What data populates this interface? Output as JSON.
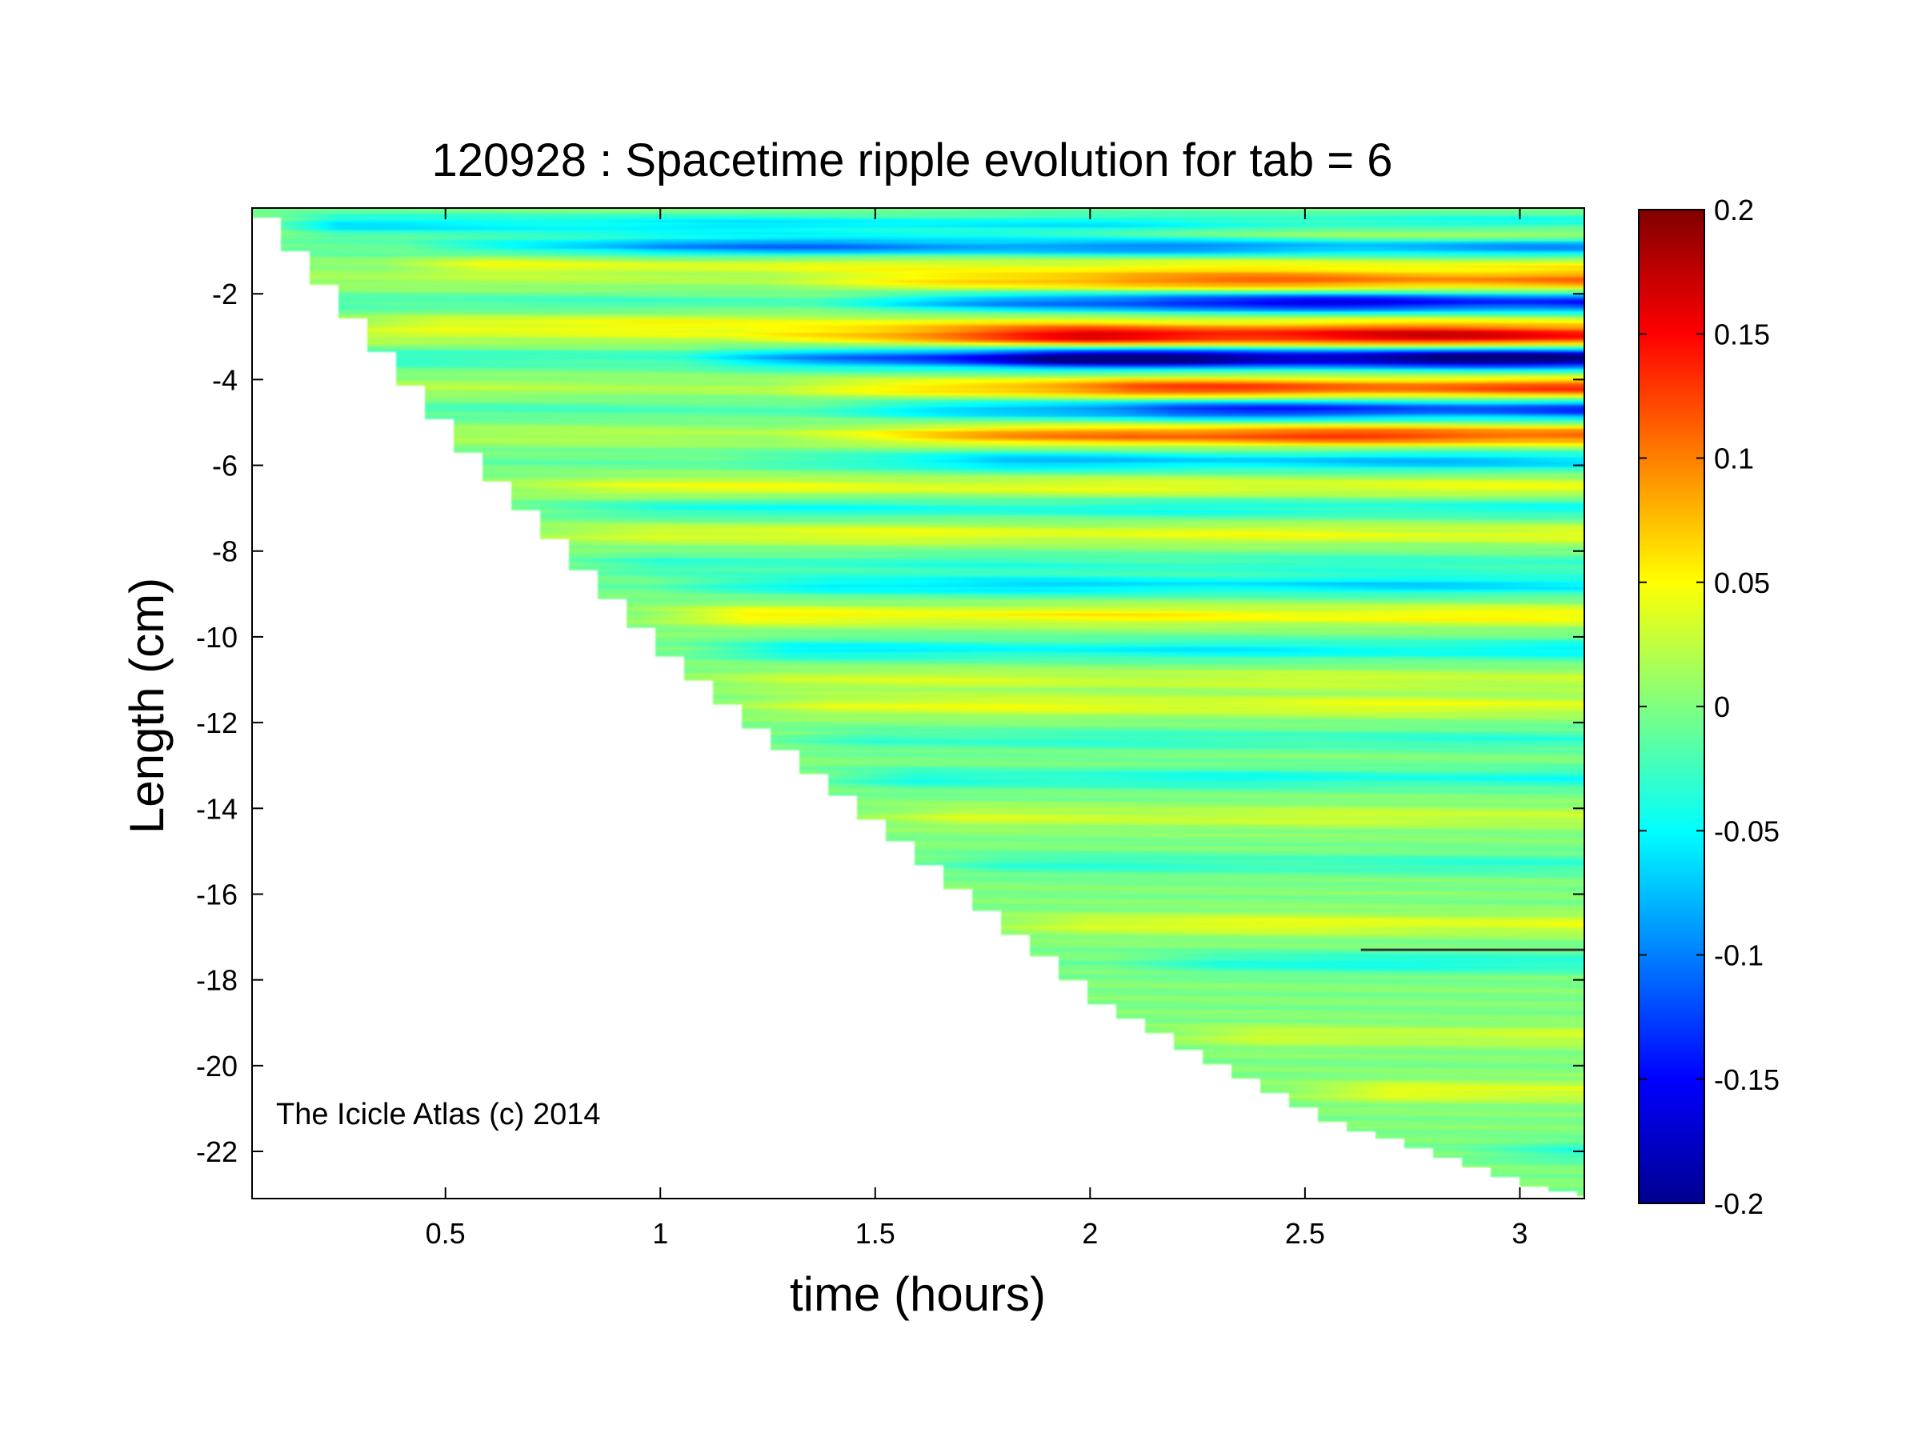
{
  "chart_data": {
    "type": "heatmap",
    "title": "120928 : Spacetime ripple evolution for tab = 6",
    "xlabel": "time (hours)",
    "ylabel": "Length (cm)",
    "xlim": [
      0.05,
      3.15
    ],
    "ylim": [
      -23.1,
      0.0
    ],
    "xticks": [
      0.5,
      1,
      1.5,
      2,
      2.5,
      3
    ],
    "xtick_labels": [
      "0.5",
      "1",
      "1.5",
      "2",
      "2.5",
      "3"
    ],
    "yticks": [
      -2,
      -4,
      -6,
      -8,
      -10,
      -12,
      -14,
      -16,
      -18,
      -20,
      -22
    ],
    "ytick_labels": [
      "-2",
      "-4",
      "-6",
      "-8",
      "-10",
      "-12",
      "-14",
      "-16",
      "-18",
      "-20",
      "-22"
    ],
    "colormap": "jet",
    "clim": [
      -0.2,
      0.2
    ],
    "colorbar_ticks": [
      0.2,
      0.15,
      0.1,
      0.05,
      0,
      -0.05,
      -0.1,
      -0.15,
      -0.2
    ],
    "colorbar_tick_labels": [
      "0.2",
      "0.15",
      "0.1",
      "0.05",
      "0",
      "-0.05",
      "-0.1",
      "-0.15",
      "-0.2"
    ],
    "grid": false,
    "annotation": "The Icicle Atlas (c) 2014",
    "data_extent_description": "icicle tip advances from about -0.2 cm at t=0.05 h to about -23 cm at t=3.15 h; region below the tip is empty",
    "tip_front": [
      {
        "t": 0.05,
        "len": -0.2
      },
      {
        "t": 0.5,
        "len": -5.5
      },
      {
        "t": 1.0,
        "len": -10.6
      },
      {
        "t": 1.5,
        "len": -14.6
      },
      {
        "t": 2.0,
        "len": -18.6
      },
      {
        "t": 2.5,
        "len": -21.2
      },
      {
        "t": 3.0,
        "len": -22.8
      },
      {
        "t": 3.15,
        "len": -23.1
      }
    ],
    "ripple_bands": [
      {
        "len": -0.4,
        "amp": -0.06,
        "t_on": 0.05,
        "grow": 0.2
      },
      {
        "len": -0.6,
        "amp": 0.06,
        "t_on": 1.6,
        "grow": 1.0
      },
      {
        "len": -0.9,
        "amp": -0.1,
        "t_on": 0.3,
        "grow": 0.7
      },
      {
        "len": -1.3,
        "amp": 0.04,
        "t_on": 0.3,
        "grow": 0.3
      },
      {
        "len": -1.7,
        "amp": 0.1,
        "t_on": 1.1,
        "grow": 1.0
      },
      {
        "len": -2.2,
        "amp": -0.15,
        "t_on": 1.2,
        "grow": 1.0
      },
      {
        "len": -2.7,
        "amp": 0.04,
        "t_on": 0.2,
        "grow": 0.3
      },
      {
        "len": -3.0,
        "amp": 0.15,
        "t_on": 1.0,
        "grow": 1.0
      },
      {
        "len": -3.5,
        "amp": -0.2,
        "t_on": 0.9,
        "grow": 1.0
      },
      {
        "len": -4.2,
        "amp": 0.12,
        "t_on": 1.1,
        "grow": 1.0
      },
      {
        "len": -4.7,
        "amp": -0.13,
        "t_on": 1.2,
        "grow": 1.0
      },
      {
        "len": -5.3,
        "amp": 0.12,
        "t_on": 1.1,
        "grow": 1.0
      },
      {
        "len": -5.9,
        "amp": -0.07,
        "t_on": 1.0,
        "grow": 0.8
      },
      {
        "len": -6.5,
        "amp": 0.04,
        "t_on": 0.5,
        "grow": 0.4
      },
      {
        "len": -7.0,
        "amp": -0.04,
        "t_on": 0.6,
        "grow": 0.4
      },
      {
        "len": -7.6,
        "amp": 0.04,
        "t_on": 0.6,
        "grow": 0.4
      },
      {
        "len": -8.3,
        "amp": -0.03,
        "t_on": 0.7,
        "grow": 0.3
      },
      {
        "len": -8.8,
        "amp": -0.06,
        "t_on": 0.9,
        "grow": 0.5
      },
      {
        "len": -9.5,
        "amp": 0.05,
        "t_on": 0.9,
        "grow": 0.3
      },
      {
        "len": -10.3,
        "amp": -0.05,
        "t_on": 1.0,
        "grow": 0.3
      },
      {
        "len": -11.0,
        "amp": 0.03,
        "t_on": 1.0,
        "grow": 0.3
      },
      {
        "len": -11.6,
        "amp": 0.04,
        "t_on": 1.1,
        "grow": 0.3
      },
      {
        "len": -12.4,
        "amp": -0.03,
        "t_on": 1.2,
        "grow": 0.3
      },
      {
        "len": -13.3,
        "amp": -0.04,
        "t_on": 1.3,
        "grow": 0.3
      },
      {
        "len": -14.2,
        "amp": 0.03,
        "t_on": 1.4,
        "grow": 0.3
      },
      {
        "len": -15.3,
        "amp": -0.03,
        "t_on": 1.5,
        "grow": 0.3
      },
      {
        "len": -16.7,
        "amp": 0.04,
        "t_on": 1.7,
        "grow": 0.3
      },
      {
        "len": -17.6,
        "amp": -0.04,
        "t_on": 2.0,
        "grow": 0.3
      },
      {
        "len": -19.3,
        "amp": 0.03,
        "t_on": 2.1,
        "grow": 0.3
      },
      {
        "len": -20.6,
        "amp": 0.04,
        "t_on": 2.4,
        "grow": 0.3
      },
      {
        "len": -22.0,
        "amp": -0.03,
        "t_on": 2.8,
        "grow": 0.3
      }
    ],
    "artifact_line": {
      "len": -17.3,
      "t_start": 2.63,
      "t_end": 3.15
    }
  }
}
